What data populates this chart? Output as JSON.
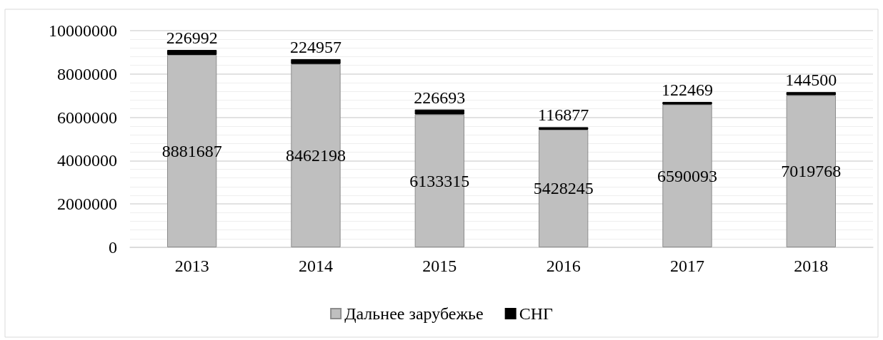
{
  "chart_data": {
    "type": "bar",
    "stacked": true,
    "categories": [
      "2013",
      "2014",
      "2015",
      "2016",
      "2017",
      "2018"
    ],
    "series": [
      {
        "name": "Дальнее зарубежье",
        "color": "#bfbfbf",
        "values": [
          8881687,
          8462198,
          6133315,
          5428245,
          6590093,
          7019768
        ]
      },
      {
        "name": "СНГ",
        "color": "#000000",
        "values": [
          226992,
          224957,
          226693,
          116877,
          122469,
          144500
        ]
      }
    ],
    "ylim": [
      0,
      10000000
    ],
    "yticks": [
      0,
      2000000,
      4000000,
      6000000,
      8000000,
      10000000
    ],
    "grid": "y",
    "legend": "bottom",
    "data_labels": true
  }
}
